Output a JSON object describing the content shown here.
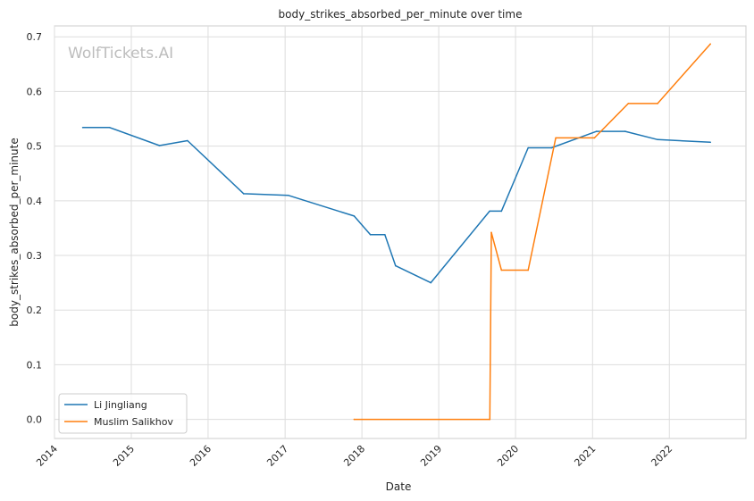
{
  "watermark": "WolfTickets.AI",
  "chart_data": {
    "type": "line",
    "title": "body_strikes_absorbed_per_minute over time",
    "xlabel": "Date",
    "ylabel": "body_strikes_absorbed_per_minute",
    "xlim": [
      "2014-01-01",
      "2022-12-31"
    ],
    "ylim": [
      -0.035,
      0.72
    ],
    "x_ticks": [
      "2014",
      "2015",
      "2016",
      "2017",
      "2018",
      "2019",
      "2020",
      "2021",
      "2022"
    ],
    "y_ticks": [
      "0.0",
      "0.1",
      "0.2",
      "0.3",
      "0.4",
      "0.5",
      "0.6",
      "0.7"
    ],
    "grid": true,
    "legend_position": "lower-left",
    "series": [
      {
        "name": "Li Jingliang",
        "color": "#1f77b4",
        "points": [
          [
            "2014-05-15",
            0.534
          ],
          [
            "2014-09-20",
            0.534
          ],
          [
            "2015-05-15",
            0.501
          ],
          [
            "2015-09-25",
            0.51
          ],
          [
            "2016-06-18",
            0.413
          ],
          [
            "2017-01-15",
            0.41
          ],
          [
            "2017-11-25",
            0.372
          ],
          [
            "2018-02-10",
            0.338
          ],
          [
            "2018-04-20",
            0.338
          ],
          [
            "2018-06-10",
            0.281
          ],
          [
            "2018-11-24",
            0.25
          ],
          [
            "2019-08-31",
            0.381
          ],
          [
            "2019-10-26",
            0.381
          ],
          [
            "2020-03-01",
            0.497
          ],
          [
            "2020-06-20",
            0.497
          ],
          [
            "2021-01-20",
            0.527
          ],
          [
            "2021-06-05",
            0.527
          ],
          [
            "2021-11-06",
            0.512
          ],
          [
            "2022-07-15",
            0.507
          ]
        ]
      },
      {
        "name": "Muslim Salikhov",
        "color": "#ff7f0e",
        "points": [
          [
            "2017-11-25",
            0.0
          ],
          [
            "2019-09-01",
            0.0
          ],
          [
            "2019-09-08",
            0.342
          ],
          [
            "2019-10-26",
            0.273
          ],
          [
            "2020-03-01",
            0.273
          ],
          [
            "2020-07-10",
            0.515
          ],
          [
            "2021-01-10",
            0.515
          ],
          [
            "2021-06-20",
            0.578
          ],
          [
            "2021-11-06",
            0.578
          ],
          [
            "2022-07-15",
            0.687
          ]
        ]
      }
    ]
  }
}
